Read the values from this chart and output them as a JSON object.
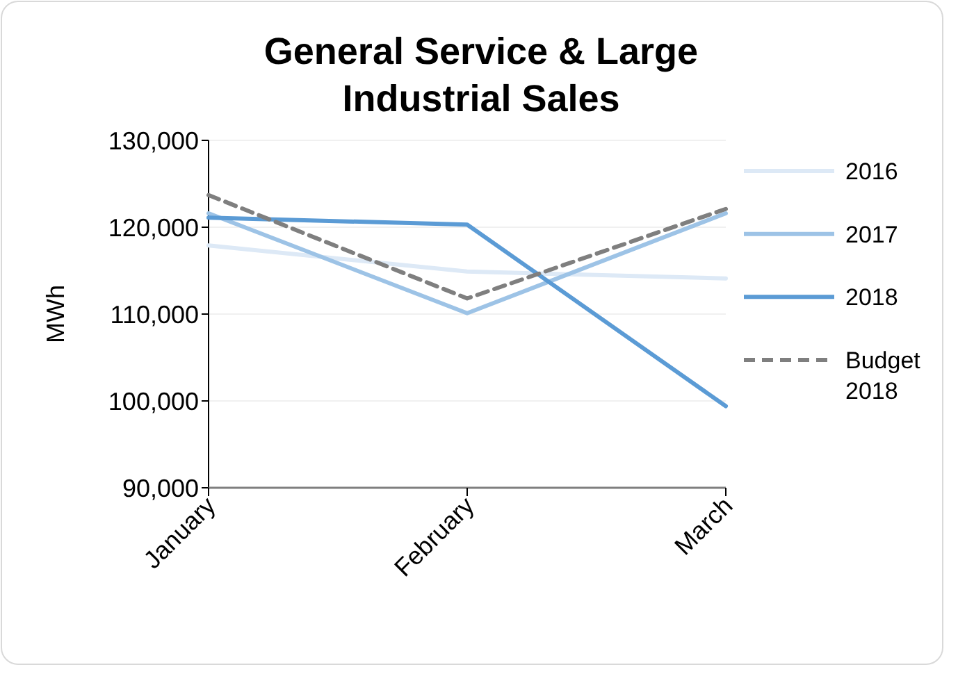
{
  "chart_data": {
    "type": "line",
    "title": "General Service & Large Industrial Sales",
    "ylabel": "MWh",
    "categories": [
      "January",
      "February",
      "March"
    ],
    "series": [
      {
        "name": "2016",
        "color": "#dde9f6",
        "values": [
          117900,
          114900,
          114100
        ]
      },
      {
        "name": "2017",
        "color": "#9dc3e6",
        "values": [
          121600,
          110100,
          121600
        ]
      },
      {
        "name": "2018",
        "color": "#5b9bd5",
        "values": [
          121100,
          120300,
          99400
        ]
      },
      {
        "name": "Budget 2018",
        "color": "#7f7f7f",
        "values": [
          123700,
          111800,
          122100
        ],
        "line_style": "dashed"
      }
    ],
    "ylim": [
      90000,
      130000
    ],
    "yticks": [
      {
        "value": 90000,
        "label": "90,000"
      },
      {
        "value": 100000,
        "label": "100,000"
      },
      {
        "value": 110000,
        "label": "110,000"
      },
      {
        "value": 120000,
        "label": "120,000"
      },
      {
        "value": 130000,
        "label": "130,000"
      }
    ],
    "grid": "y",
    "legend": "right",
    "marker": "none"
  }
}
